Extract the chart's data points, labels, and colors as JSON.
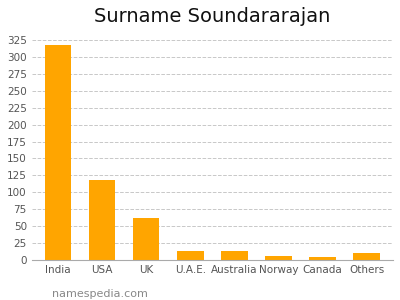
{
  "title": "Surname Soundararajan",
  "categories": [
    "India",
    "USA",
    "UK",
    "U.A.E.",
    "Australia",
    "Norway",
    "Canada",
    "Others"
  ],
  "values": [
    318,
    118,
    62,
    14,
    14,
    6,
    5,
    11
  ],
  "bar_color": "#FFA500",
  "background_color": "#ffffff",
  "ylim": [
    0,
    335
  ],
  "yticks": [
    0,
    25,
    50,
    75,
    100,
    125,
    150,
    175,
    200,
    225,
    250,
    275,
    300,
    325
  ],
  "grid_color": "#c8c8c8",
  "title_fontsize": 14,
  "tick_fontsize": 7.5,
  "watermark": "namespedia.com",
  "watermark_fontsize": 8
}
